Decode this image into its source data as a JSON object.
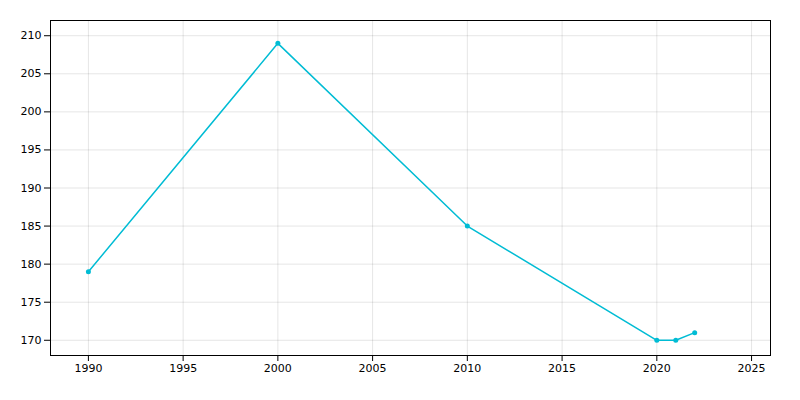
{
  "chart_data": {
    "type": "line",
    "x": [
      1990,
      2000,
      2010,
      2020,
      2021,
      2022
    ],
    "values": [
      179,
      209,
      185,
      170,
      170,
      171
    ],
    "color": "#00BCD4",
    "marker": "circle",
    "xlim": [
      1988,
      2026
    ],
    "ylim": [
      168,
      212
    ],
    "xticks": [
      1990,
      1995,
      2000,
      2005,
      2010,
      2015,
      2020,
      2025
    ],
    "yticks": [
      170,
      175,
      180,
      185,
      190,
      195,
      200,
      205,
      210
    ],
    "grid": true
  }
}
